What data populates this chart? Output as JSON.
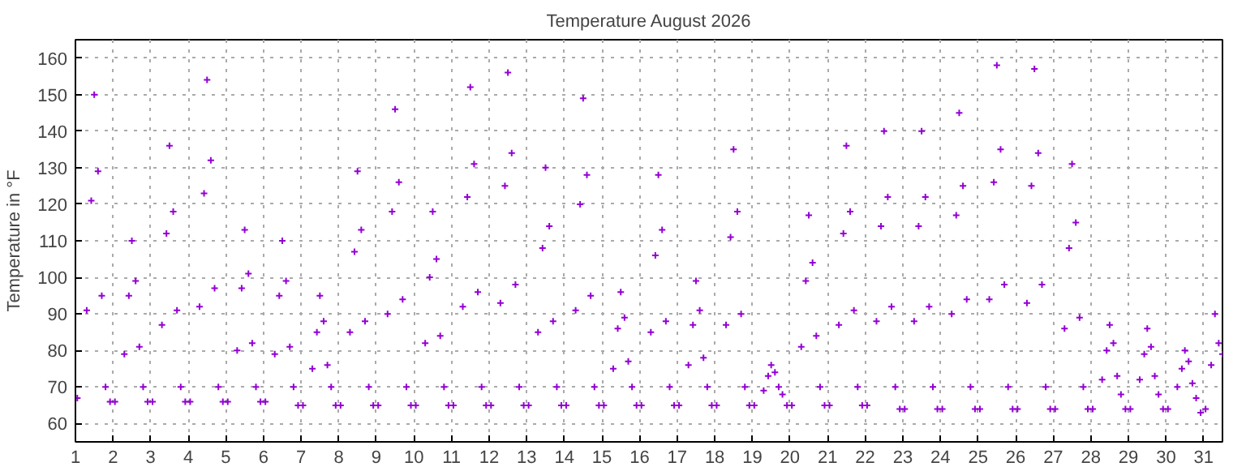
{
  "chart_data": {
    "type": "scatter",
    "title": "Temperature August 2026",
    "ylabel": "Temperature in °F",
    "xlim": [
      1,
      31.5
    ],
    "ylim": [
      55,
      165
    ],
    "xticks": [
      1,
      2,
      3,
      4,
      5,
      6,
      7,
      8,
      9,
      10,
      11,
      12,
      13,
      14,
      15,
      16,
      17,
      18,
      19,
      20,
      21,
      22,
      23,
      24,
      25,
      26,
      27,
      28,
      29,
      30,
      31
    ],
    "yticks": [
      60,
      70,
      80,
      90,
      100,
      110,
      120,
      130,
      140,
      150,
      160
    ],
    "grid": true,
    "marker": "cross",
    "series": [
      {
        "color": "#9400d3",
        "x": [
          1.05,
          1.3,
          1.42,
          1.5,
          1.6,
          1.7,
          1.8,
          1.92,
          2.05,
          2.3,
          2.42,
          2.5,
          2.6,
          2.7,
          2.8,
          2.92,
          3.05,
          3.3,
          3.42,
          3.5,
          3.6,
          3.7,
          3.8,
          3.92,
          4.05,
          4.3,
          4.42,
          4.5,
          4.6,
          4.7,
          4.8,
          4.92,
          5.05,
          5.3,
          5.42,
          5.5,
          5.6,
          5.7,
          5.8,
          5.92,
          6.05,
          6.3,
          6.42,
          6.5,
          6.6,
          6.7,
          6.8,
          6.92,
          7.05,
          7.3,
          7.42,
          7.5,
          7.6,
          7.7,
          7.8,
          7.92,
          8.05,
          8.3,
          8.42,
          8.5,
          8.6,
          8.7,
          8.8,
          8.92,
          9.05,
          9.3,
          9.42,
          9.5,
          9.6,
          9.7,
          9.8,
          9.92,
          10.05,
          10.3,
          10.42,
          10.5,
          10.6,
          10.7,
          10.8,
          10.92,
          11.05,
          11.3,
          11.42,
          11.5,
          11.6,
          11.7,
          11.8,
          11.92,
          12.05,
          12.3,
          12.42,
          12.5,
          12.6,
          12.7,
          12.8,
          12.92,
          13.05,
          13.3,
          13.42,
          13.5,
          13.6,
          13.7,
          13.8,
          13.92,
          14.05,
          14.3,
          14.42,
          14.5,
          14.6,
          14.7,
          14.8,
          14.92,
          15.05,
          15.3,
          15.42,
          15.5,
          15.6,
          15.7,
          15.8,
          15.92,
          16.05,
          16.3,
          16.42,
          16.5,
          16.6,
          16.7,
          16.8,
          16.92,
          17.05,
          17.3,
          17.42,
          17.5,
          17.6,
          17.7,
          17.8,
          17.92,
          18.05,
          18.3,
          18.42,
          18.5,
          18.6,
          18.7,
          18.8,
          18.92,
          19.05,
          19.3,
          19.42,
          19.5,
          19.6,
          19.7,
          19.8,
          19.92,
          20.05,
          20.3,
          20.42,
          20.5,
          20.6,
          20.7,
          20.8,
          20.92,
          21.05,
          21.3,
          21.42,
          21.5,
          21.6,
          21.7,
          21.8,
          21.92,
          22.05,
          22.3,
          22.42,
          22.5,
          22.6,
          22.7,
          22.8,
          22.92,
          23.05,
          23.3,
          23.42,
          23.5,
          23.6,
          23.7,
          23.8,
          23.92,
          24.05,
          24.3,
          24.42,
          24.5,
          24.6,
          24.7,
          24.8,
          24.92,
          25.05,
          25.3,
          25.42,
          25.5,
          25.6,
          25.7,
          25.8,
          25.92,
          26.05,
          26.3,
          26.42,
          26.5,
          26.6,
          26.7,
          26.8,
          26.92,
          27.05,
          27.3,
          27.42,
          27.5,
          27.6,
          27.7,
          27.8,
          27.92,
          28.05,
          28.3,
          28.42,
          28.5,
          28.6,
          28.7,
          28.8,
          28.92,
          29.05,
          29.3,
          29.42,
          29.5,
          29.6,
          29.7,
          29.8,
          29.92,
          30.05,
          30.3,
          30.42,
          30.5,
          30.6,
          30.7,
          30.8,
          30.92,
          31.05,
          31.2,
          31.3,
          31.4,
          31.5
        ],
        "values": [
          67,
          91,
          121,
          150,
          129,
          95,
          70,
          66,
          66,
          79,
          95,
          110,
          99,
          81,
          70,
          66,
          66,
          87,
          112,
          136,
          118,
          91,
          70,
          66,
          66,
          92,
          123,
          154,
          132,
          97,
          70,
          66,
          66,
          80,
          97,
          113,
          101,
          82,
          70,
          66,
          66,
          79,
          95,
          110,
          99,
          81,
          70,
          65,
          65,
          75,
          85,
          95,
          88,
          76,
          70,
          65,
          65,
          85,
          107,
          129,
          113,
          88,
          70,
          65,
          65,
          90,
          118,
          146,
          126,
          94,
          70,
          65,
          65,
          82,
          100,
          118,
          105,
          84,
          70,
          65,
          65,
          92,
          122,
          152,
          131,
          96,
          70,
          65,
          65,
          93,
          125,
          156,
          134,
          98,
          70,
          65,
          65,
          85,
          108,
          130,
          114,
          88,
          70,
          65,
          65,
          91,
          120,
          149,
          128,
          95,
          70,
          65,
          65,
          75,
          86,
          96,
          89,
          77,
          70,
          65,
          65,
          85,
          106,
          128,
          113,
          88,
          70,
          65,
          65,
          76,
          87,
          99,
          91,
          78,
          70,
          65,
          65,
          87,
          111,
          135,
          118,
          90,
          70,
          65,
          65,
          69,
          73,
          76,
          74,
          70,
          68,
          65,
          65,
          81,
          99,
          117,
          104,
          84,
          70,
          65,
          65,
          87,
          112,
          136,
          118,
          91,
          70,
          65,
          65,
          88,
          114,
          140,
          122,
          92,
          70,
          64,
          64,
          88,
          114,
          140,
          122,
          92,
          70,
          64,
          64,
          90,
          117,
          145,
          125,
          94,
          70,
          64,
          64,
          94,
          126,
          158,
          135,
          98,
          70,
          64,
          64,
          93,
          125,
          157,
          134,
          98,
          70,
          64,
          64,
          86,
          108,
          131,
          115,
          89,
          70,
          64,
          64,
          72,
          80,
          87,
          82,
          73,
          68,
          64,
          64,
          72,
          79,
          86,
          81,
          73,
          68,
          64,
          64,
          70,
          75,
          80,
          77,
          71,
          67,
          63,
          64,
          76,
          90,
          82,
          79
        ]
      }
    ]
  }
}
